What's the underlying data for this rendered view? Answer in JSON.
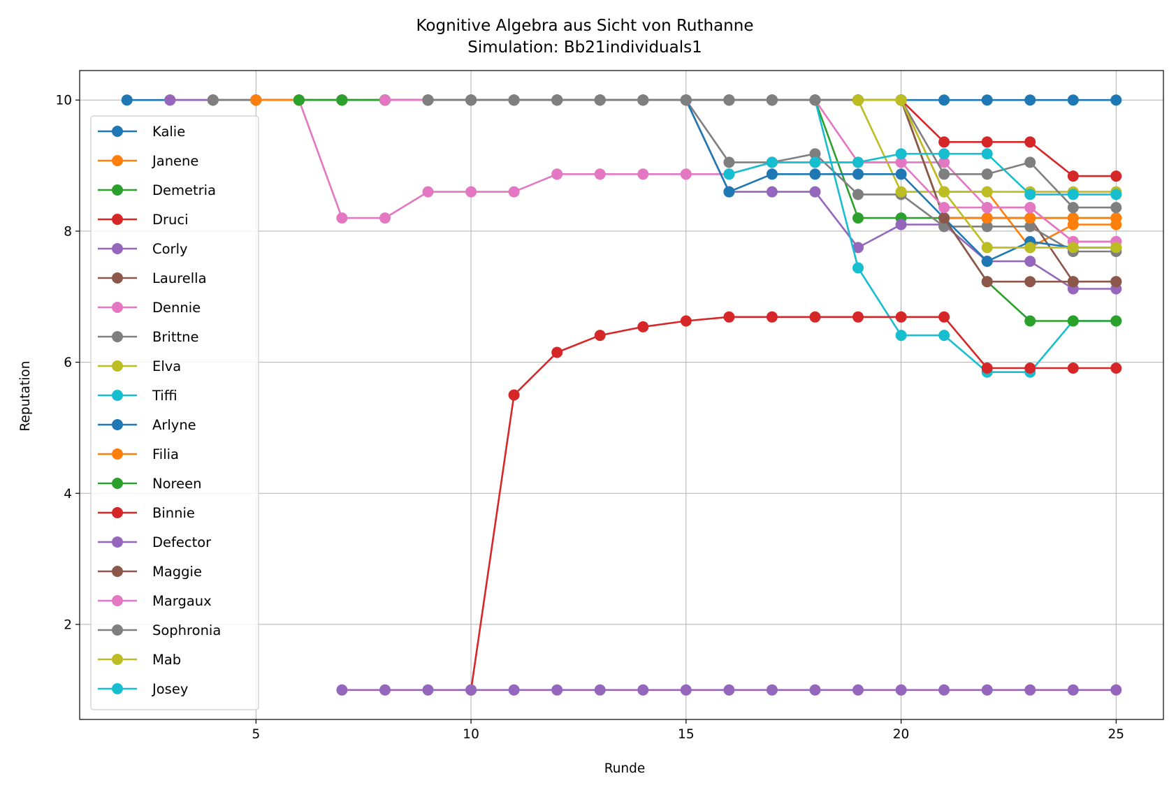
{
  "chart_data": {
    "type": "line",
    "title": "Kognitive Algebra aus Sicht von Ruthanne",
    "subtitle": "Simulation: Bb21individuals1",
    "xlabel": "Runde",
    "ylabel": "Reputation",
    "xlim": [
      0.9,
      26.1
    ],
    "ylim": [
      0.55,
      10.45
    ],
    "xticks": [
      5,
      10,
      15,
      20,
      25
    ],
    "yticks": [
      2,
      4,
      6,
      8,
      10
    ],
    "grid": true,
    "legend_position": "upper-left",
    "series": [
      {
        "name": "Kalie",
        "color": "#1f77b4",
        "x": [
          2,
          3,
          4,
          5,
          6,
          7,
          8,
          9,
          10,
          11,
          12,
          13,
          14,
          15,
          16,
          17,
          18,
          19,
          20,
          21,
          22,
          23,
          24,
          25
        ],
        "y": [
          10,
          10,
          10,
          10,
          10,
          10,
          10,
          10,
          10,
          10,
          10,
          10,
          10,
          10,
          10,
          10,
          10,
          10,
          10,
          10,
          10,
          10,
          10,
          10
        ]
      },
      {
        "name": "Janene",
        "color": "#ff7f0e",
        "x": [
          3,
          4,
          5,
          6,
          7,
          8,
          9,
          10,
          11,
          12,
          13,
          14,
          15,
          16,
          17,
          18,
          19,
          20,
          21,
          22,
          23,
          24,
          25
        ],
        "y": [
          10,
          10,
          10,
          10,
          10,
          10,
          10,
          10,
          10,
          10,
          10,
          10,
          10,
          10,
          10,
          10,
          10,
          10,
          8.6,
          8.6,
          7.75,
          8.1,
          8.1
        ]
      },
      {
        "name": "Demetria",
        "color": "#2ca02c",
        "x": [
          4,
          5,
          6,
          7,
          8,
          9,
          10,
          11,
          12,
          13,
          14,
          15,
          16,
          17,
          18,
          19,
          20,
          21,
          22,
          23,
          24,
          25
        ],
        "y": [
          10,
          10,
          10,
          10,
          10,
          10,
          10,
          10,
          10,
          10,
          10,
          10,
          10,
          10,
          10,
          8.2,
          8.2,
          8.2,
          8.2,
          8.2,
          8.2,
          8.2
        ]
      },
      {
        "name": "Druci",
        "color": "#d62728",
        "x": [
          5,
          6,
          7,
          8,
          9,
          10,
          11,
          12,
          13,
          14,
          15,
          16,
          17,
          18,
          19,
          20,
          21,
          22,
          23,
          24,
          25
        ],
        "y": [
          10,
          10,
          10,
          10,
          10,
          10,
          10,
          10,
          10,
          10,
          10,
          10,
          10,
          10,
          10,
          10,
          9.36,
          9.36,
          9.36,
          8.84,
          8.84
        ]
      },
      {
        "name": "Corly",
        "color": "#9467bd",
        "x": [
          3,
          4,
          5,
          6,
          7,
          8,
          9,
          10,
          11,
          12,
          13,
          14,
          15,
          16,
          17,
          18,
          19,
          20,
          21,
          22,
          23,
          24,
          25
        ],
        "y": [
          10,
          10,
          10,
          10,
          10,
          10,
          10,
          10,
          10,
          10,
          10,
          10,
          10,
          8.6,
          8.6,
          8.6,
          7.75,
          8.1,
          8.1,
          7.54,
          7.54,
          7.12,
          7.12
        ]
      },
      {
        "name": "Laurella",
        "color": "#8c564b",
        "x": [
          6,
          7,
          8,
          9,
          10,
          11,
          12,
          13,
          14,
          15,
          16,
          17,
          18,
          19,
          20,
          21,
          22,
          23,
          24,
          25
        ],
        "y": [
          10,
          10,
          10,
          10,
          10,
          10,
          10,
          10,
          10,
          10,
          10,
          10,
          10,
          10,
          10,
          8.2,
          8.2,
          8.2,
          7.23,
          7.23
        ]
      },
      {
        "name": "Dennie",
        "color": "#e377c2",
        "x": [
          6,
          7,
          8,
          9,
          10,
          11,
          12,
          13,
          14,
          15,
          16,
          17,
          18,
          19,
          20,
          21,
          22,
          23,
          24,
          25
        ],
        "y": [
          10,
          8.2,
          8.2,
          8.6,
          8.6,
          8.6,
          8.87,
          8.87,
          8.87,
          8.87,
          8.87,
          9.05,
          9.05,
          9.05,
          9.05,
          9.05,
          8.36,
          8.36,
          7.84,
          7.84
        ]
      },
      {
        "name": "Brittne",
        "color": "#7f7f7f",
        "x": [
          4,
          5,
          6,
          7,
          8,
          9,
          10,
          11,
          12,
          13,
          14,
          15,
          16,
          17,
          18,
          19,
          20,
          21,
          22,
          23,
          24,
          25
        ],
        "y": [
          10,
          10,
          10,
          10,
          10,
          10,
          10,
          10,
          10,
          10,
          10,
          10,
          9.05,
          9.05,
          9.18,
          8.56,
          8.56,
          8.07,
          8.07,
          8.07,
          7.69,
          7.69
        ]
      },
      {
        "name": "Elva",
        "color": "#bcbd22",
        "x": [
          13,
          14,
          15,
          16,
          17,
          18,
          19,
          20,
          21,
          22,
          23,
          24,
          25
        ],
        "y": [
          10,
          10,
          10,
          10,
          10,
          10,
          10,
          8.6,
          8.6,
          8.6,
          8.6,
          8.6,
          8.6
        ]
      },
      {
        "name": "Tiffi",
        "color": "#17becf",
        "x": [
          14,
          15,
          16,
          17,
          18,
          19,
          20,
          21,
          22,
          23,
          24,
          25
        ],
        "y": [
          10,
          10,
          10,
          10,
          10,
          7.44,
          6.41,
          6.41,
          5.85,
          5.85,
          6.63,
          6.63
        ]
      },
      {
        "name": "Arlyne",
        "color": "#1f77b4",
        "x": [
          15,
          16,
          17,
          18,
          19,
          20,
          21,
          22,
          23,
          24,
          25
        ],
        "y": [
          10,
          8.6,
          8.87,
          8.87,
          8.87,
          8.87,
          8.2,
          7.54,
          7.84,
          7.75,
          7.75
        ]
      },
      {
        "name": "Filia",
        "color": "#ff7f0e",
        "x": [
          5,
          6,
          7,
          8,
          9,
          10,
          11,
          12,
          13,
          14,
          15,
          16,
          17,
          18,
          19,
          20,
          21,
          22,
          23,
          24,
          25
        ],
        "y": [
          10,
          10,
          10,
          10,
          10,
          10,
          10,
          10,
          10,
          10,
          10,
          10,
          10,
          10,
          10,
          10,
          8.2,
          8.2,
          8.2,
          8.2,
          8.2
        ]
      },
      {
        "name": "Noreen",
        "color": "#2ca02c",
        "x": [
          6,
          7,
          8,
          9,
          10,
          11,
          12,
          13,
          14,
          15,
          16,
          17,
          18,
          19,
          20,
          21,
          22,
          23,
          24,
          25
        ],
        "y": [
          10,
          10,
          10,
          10,
          10,
          10,
          10,
          10,
          10,
          10,
          10,
          10,
          10,
          10,
          10,
          8.2,
          7.23,
          6.63,
          6.63,
          6.63
        ]
      },
      {
        "name": "Binnie",
        "color": "#d62728",
        "x": [
          10,
          11,
          12,
          13,
          14,
          15,
          16,
          17,
          18,
          19,
          20,
          21,
          22,
          23,
          24,
          25
        ],
        "y": [
          1,
          5.5,
          6.15,
          6.41,
          6.54,
          6.63,
          6.69,
          6.69,
          6.69,
          6.69,
          6.69,
          6.69,
          5.91,
          5.91,
          5.91,
          5.91
        ]
      },
      {
        "name": "Defector",
        "color": "#9467bd",
        "x": [
          7,
          8,
          9,
          10,
          11,
          12,
          13,
          14,
          15,
          16,
          17,
          18,
          19,
          20,
          21,
          22,
          23,
          24,
          25
        ],
        "y": [
          1,
          1,
          1,
          1,
          1,
          1,
          1,
          1,
          1,
          1,
          1,
          1,
          1,
          1,
          1,
          1,
          1,
          1,
          1
        ]
      },
      {
        "name": "Maggie",
        "color": "#8c564b",
        "x": [
          20,
          21,
          22,
          23,
          24,
          25
        ],
        "y": [
          10,
          8.2,
          7.23,
          7.23,
          7.23,
          7.23
        ]
      },
      {
        "name": "Margaux",
        "color": "#e377c2",
        "x": [
          8,
          9,
          10,
          11,
          12,
          13,
          14,
          15,
          16,
          17,
          18,
          19,
          20,
          21,
          22,
          23,
          24,
          25
        ],
        "y": [
          10,
          10,
          10,
          10,
          10,
          10,
          10,
          10,
          10,
          10,
          10,
          9.05,
          9.05,
          8.36,
          8.36,
          8.36,
          7.84,
          7.84
        ]
      },
      {
        "name": "Sophronia",
        "color": "#7f7f7f",
        "x": [
          9,
          10,
          11,
          12,
          13,
          14,
          15,
          16,
          17,
          18,
          19,
          20,
          21,
          22,
          23,
          24,
          25
        ],
        "y": [
          10,
          10,
          10,
          10,
          10,
          10,
          10,
          10,
          10,
          10,
          10,
          10,
          8.87,
          8.87,
          9.05,
          8.36,
          8.36
        ]
      },
      {
        "name": "Mab",
        "color": "#bcbd22",
        "x": [
          19,
          20,
          21,
          22,
          23,
          24,
          25
        ],
        "y": [
          10,
          10,
          8.6,
          7.75,
          7.75,
          7.75,
          7.75
        ]
      },
      {
        "name": "Josey",
        "color": "#17becf",
        "x": [
          16,
          17,
          18,
          19,
          20,
          21,
          22,
          23,
          24,
          25
        ],
        "y": [
          8.87,
          9.05,
          9.05,
          9.05,
          9.18,
          9.18,
          9.18,
          8.56,
          8.56,
          8.56
        ]
      }
    ]
  }
}
